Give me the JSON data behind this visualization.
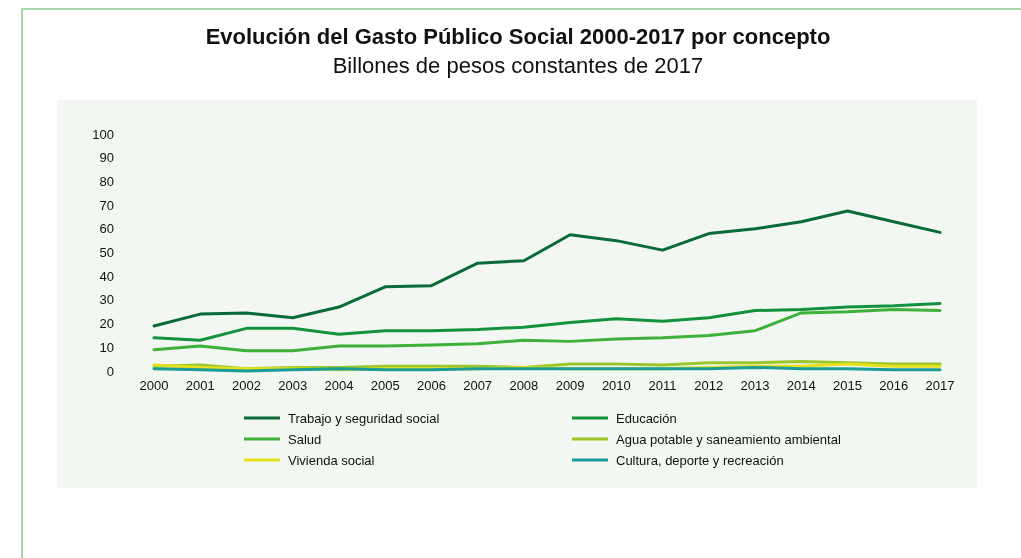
{
  "chart_data": {
    "type": "line",
    "title": "Evolución del Gasto Público Social 2000-2017 por concepto",
    "subtitle": "Billones de pesos constantes de 2017",
    "categories": [
      "2000",
      "2001",
      "2002",
      "2003",
      "2004",
      "2005",
      "2006",
      "2007",
      "2008",
      "2009",
      "2010",
      "2011",
      "2012",
      "2013",
      "2014",
      "2015",
      "2016",
      "2017"
    ],
    "series": [
      {
        "name": "Trabajo y seguridad social",
        "color": "#0b6b36",
        "values": [
          19,
          24,
          24.5,
          22.5,
          27,
          35.5,
          36,
          45.5,
          46.5,
          57.5,
          55,
          51,
          58,
          60,
          63,
          67.5,
          63,
          58.5
        ]
      },
      {
        "name": "Educación",
        "color": "#13923d",
        "values": [
          14,
          13,
          18,
          18,
          15.5,
          17,
          17,
          17.5,
          18.5,
          20.5,
          22,
          21,
          22.5,
          25.5,
          26,
          27,
          27.5,
          28.5
        ]
      },
      {
        "name": "Salud",
        "color": "#3fb03a",
        "values": [
          9,
          10.5,
          8.5,
          8.5,
          10.5,
          10.5,
          11,
          11.5,
          13,
          12.5,
          13.5,
          14,
          15,
          17,
          24.5,
          25,
          26,
          25.5
        ]
      },
      {
        "name": "Agua potable y saneamiento ambiental",
        "color": "#9cc62b",
        "values": [
          2,
          2.5,
          1,
          1.5,
          1.5,
          2,
          2,
          2,
          1.5,
          3,
          3,
          2.5,
          3.5,
          3.5,
          4,
          3.5,
          3,
          3
        ]
      },
      {
        "name": "Vivienda social",
        "color": "#e4e01c",
        "values": [
          2.5,
          1.5,
          1,
          1,
          0.5,
          1,
          1,
          1,
          1.5,
          1,
          1,
          1,
          1.5,
          2,
          2,
          3,
          2,
          2
        ]
      },
      {
        "name": "Cultura, deporte y recreación",
        "color": "#1a9c98",
        "values": [
          1,
          0.5,
          0,
          0.5,
          1,
          0.5,
          0.5,
          1,
          1,
          1,
          1,
          1,
          1,
          1.5,
          1,
          1,
          0.5,
          0.5
        ]
      }
    ],
    "ylim": [
      0,
      100
    ],
    "yticks": [
      0,
      10,
      20,
      30,
      40,
      50,
      60,
      70,
      80,
      90,
      100
    ],
    "grid": false,
    "legend": "bottom",
    "line_style": "solid",
    "marker": "none"
  }
}
